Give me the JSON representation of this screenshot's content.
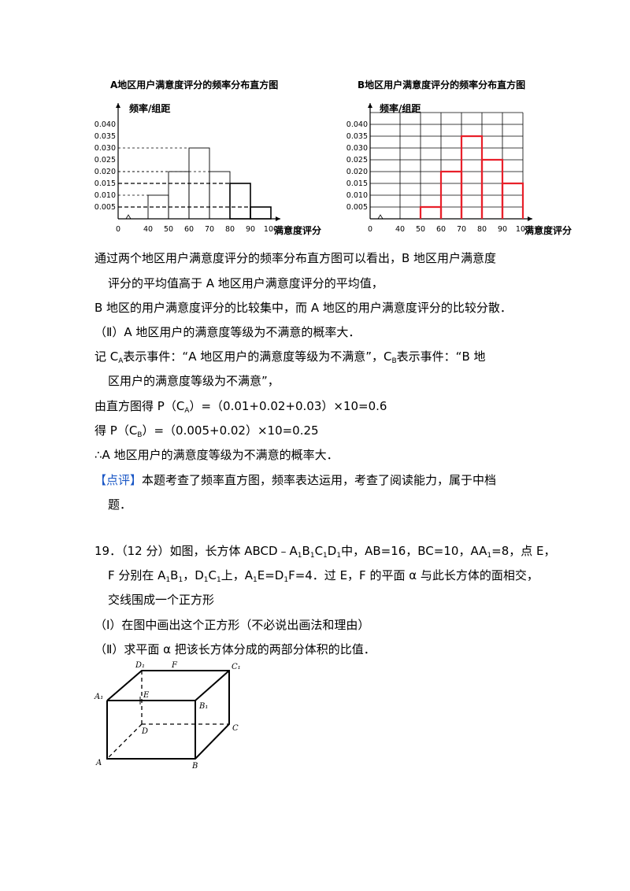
{
  "chart_data": [
    {
      "type": "bar",
      "title": "A地区用户满意度评分的频率分布直方图",
      "ylabel": "频率/组距",
      "xlabel": "满意度评分",
      "x_ticks": [
        "0",
        "40",
        "50",
        "60",
        "70",
        "80",
        "90",
        "100"
      ],
      "y_ticks": [
        "0.005",
        "0.010",
        "0.015",
        "0.020",
        "0.025",
        "0.030",
        "0.035",
        "0.040"
      ],
      "bins": [
        [
          40,
          50
        ],
        [
          50,
          60
        ],
        [
          60,
          70
        ],
        [
          70,
          80
        ],
        [
          80,
          90
        ],
        [
          90,
          100
        ]
      ],
      "values": [
        0.01,
        0.02,
        0.03,
        0.02,
        0.015,
        0.005
      ],
      "ylim": [
        0,
        0.045
      ],
      "grid": false
    },
    {
      "type": "bar",
      "title": "B地区用户满意度评分的频率分布直方图",
      "ylabel": "频率/组距",
      "xlabel": "满意度评分",
      "x_ticks": [
        "0",
        "40",
        "50",
        "60",
        "70",
        "80",
        "90",
        "100"
      ],
      "y_ticks": [
        "0.005",
        "0.010",
        "0.015",
        "0.020",
        "0.025",
        "0.030",
        "0.035",
        "0.040"
      ],
      "bins": [
        [
          50,
          60
        ],
        [
          60,
          70
        ],
        [
          70,
          80
        ],
        [
          80,
          90
        ],
        [
          90,
          100
        ]
      ],
      "values": [
        0.005,
        0.02,
        0.035,
        0.025,
        0.015
      ],
      "ylim": [
        0,
        0.045
      ],
      "grid": true,
      "bar_color": "#e8202a"
    }
  ],
  "text": {
    "p1a": "通过两个地区用户满意度评分的频率分布直方图可以看出，B 地区用户满意度",
    "p1b": "评分的平均值高于 A 地区用户满意度评分的平均值，",
    "p2": "B 地区的用户满意度评分的比较集中，而 A 地区的用户满意度评分的比较分散．",
    "p3": "（Ⅱ）A 地区用户的满意度等级为不满意的概率大．",
    "p4a_1": "记 C",
    "p4a_sub1": "A",
    "p4a_2": "表示事件：“A 地区用户的满意度等级为不满意”，C",
    "p4a_sub2": "B",
    "p4a_3": "表示事件：“B 地",
    "p4b": "区用户的满意度等级为不满意”，",
    "p5_1": "由直方图得 P（C",
    "p5_sub": "A",
    "p5_2": "）=（0.01+0.02+0.03）×10=0.6",
    "p6_1": "得 P（C",
    "p6_sub": "B",
    "p6_2": "）=（0.005+0.02）×10=0.25",
    "p7": "∴A 地区用户的满意度等级为不满意的概率大．",
    "dp_label": "【点评】",
    "dp_a": "本题考查了频率直方图，频率表达运用，考查了阅读能力，属于中档",
    "dp_b": "题．",
    "q19_1": "19．（12 分）如图，长方体 ABCD﹣A",
    "q19_s1": "1",
    "q19_2": "B",
    "q19_s2": "1",
    "q19_3": "C",
    "q19_s3": "1",
    "q19_4": "D",
    "q19_s4": "1",
    "q19_5": "中，AB=16，BC=10，AA",
    "q19_s5": "1",
    "q19_6": "=8，点 E，",
    "q19b_1": "F 分别在 A",
    "q19b_s1": "1",
    "q19b_2": "B",
    "q19b_s2": "1",
    "q19b_3": "，D",
    "q19b_s3": "1",
    "q19b_4": "C",
    "q19b_s4": "1",
    "q19b_5": "上，A",
    "q19b_s5": "1",
    "q19b_6": "E=D",
    "q19b_s6": "1",
    "q19b_7": "F=4．过 E，F 的平面 α 与此长方体的面相交，",
    "q19c": "交线围成一个正方形",
    "q19d": "（Ⅰ）在图中画出这个正方形（不必说出画法和理由）",
    "q19e": "（Ⅱ）求平面 α 把该长方体分成的两部分体积的比值．"
  },
  "figure": {
    "labels": [
      "D₁",
      "F",
      "C₁",
      "A₁",
      "E",
      "B₁",
      "D",
      "C",
      "A",
      "B"
    ]
  }
}
